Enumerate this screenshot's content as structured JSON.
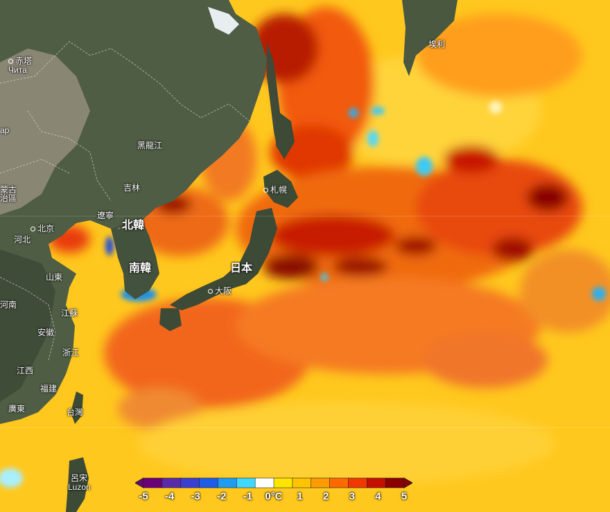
{
  "place_labels": [
    {
      "id": "chita-cn",
      "text": "赤塔"
    },
    {
      "id": "chita-ru",
      "text": "Чита"
    },
    {
      "id": "heilongjiang",
      "text": "黑龍江"
    },
    {
      "id": "jilin",
      "text": "吉林"
    },
    {
      "id": "liaoning",
      "text": "遼寧"
    },
    {
      "id": "inner-mongolia-1",
      "text": "蒙古"
    },
    {
      "id": "inner-mongolia-2",
      "text": "治區"
    },
    {
      "id": "beijing",
      "text": "北京"
    },
    {
      "id": "hebei",
      "text": "河北"
    },
    {
      "id": "shandong",
      "text": "山東"
    },
    {
      "id": "henan",
      "text": "河南"
    },
    {
      "id": "jiangsu",
      "text": "江蘇"
    },
    {
      "id": "anhui",
      "text": "安徽"
    },
    {
      "id": "zhejiang",
      "text": "浙江"
    },
    {
      "id": "jiangxi",
      "text": "江西"
    },
    {
      "id": "fujian",
      "text": "福建"
    },
    {
      "id": "guangdong",
      "text": "廣東"
    },
    {
      "id": "taiwan",
      "text": "台灣"
    },
    {
      "id": "luzon-cn",
      "text": "呂宋"
    },
    {
      "id": "luzon-en",
      "text": "Luzon"
    },
    {
      "id": "north-korea",
      "text": "北韓"
    },
    {
      "id": "south-korea",
      "text": "南韓"
    },
    {
      "id": "japan",
      "text": "日本"
    },
    {
      "id": "osaka",
      "text": "大阪"
    },
    {
      "id": "sapporo",
      "text": "札幌"
    },
    {
      "id": "kamchatka",
      "text": "埃利"
    },
    {
      "id": "edge-fragment",
      "text": "ap"
    }
  ],
  "legend": {
    "unit": "°C",
    "ticks": [
      "-5",
      "-4",
      "-3",
      "-2",
      "-1",
      "0°C",
      "1",
      "2",
      "3",
      "4",
      "5"
    ],
    "colors": [
      "#6a0078",
      "#5a2ba8",
      "#3a3fd0",
      "#1e5ce8",
      "#1f9cf0",
      "#3fd8ff",
      "#ffffff",
      "#ffe600",
      "#ffc400",
      "#ff9a00",
      "#ff6a00",
      "#f03800",
      "#c41000",
      "#8a0000"
    ]
  }
}
